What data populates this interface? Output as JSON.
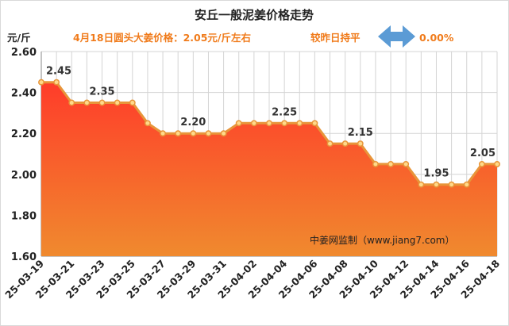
{
  "header": {
    "title": "安丘一般泥姜价格走势",
    "unit": "元/斤",
    "headline": "4月18日圆头大姜价格：2.05元/斤左右",
    "compare": "较昨日持平",
    "change": "0.00%",
    "arrow_icon": "left-right-arrow-icon",
    "arrow_color": "#5b9bd5"
  },
  "watermark": "中姜网监制（www.jiang7.com）",
  "chart_data": {
    "type": "area",
    "title": "安丘一般泥姜价格走势",
    "ylabel": "元/斤",
    "ylim": [
      1.6,
      2.6
    ],
    "yticks": [
      "1.60",
      "1.80",
      "2.00",
      "2.20",
      "2.40",
      "2.60"
    ],
    "grid": true,
    "x": [
      "25-03-19",
      "25-03-20",
      "25-03-21",
      "25-03-22",
      "25-03-23",
      "25-03-24",
      "25-03-25",
      "25-03-26",
      "25-03-27",
      "25-03-28",
      "25-03-29",
      "25-03-30",
      "25-03-31",
      "25-04-01",
      "25-04-02",
      "25-04-03",
      "25-04-04",
      "25-04-05",
      "25-04-06",
      "25-04-07",
      "25-04-08",
      "25-04-09",
      "25-04-10",
      "25-04-11",
      "25-04-12",
      "25-04-13",
      "25-04-14",
      "25-04-15",
      "25-04-16",
      "25-04-17",
      "25-04-18"
    ],
    "xticks": [
      "25-03-19",
      "25-03-21",
      "25-03-23",
      "25-03-25",
      "25-03-27",
      "25-03-29",
      "25-03-31",
      "25-04-02",
      "25-04-04",
      "25-04-06",
      "25-04-08",
      "25-04-10",
      "25-04-12",
      "25-04-14",
      "25-04-16",
      "25-04-18"
    ],
    "values": [
      2.45,
      2.45,
      2.35,
      2.35,
      2.35,
      2.35,
      2.35,
      2.25,
      2.2,
      2.2,
      2.2,
      2.2,
      2.2,
      2.25,
      2.25,
      2.25,
      2.25,
      2.25,
      2.25,
      2.15,
      2.15,
      2.15,
      2.05,
      2.05,
      2.05,
      1.95,
      1.95,
      1.95,
      1.95,
      2.05,
      2.05
    ],
    "data_labels": [
      {
        "x": "25-03-19",
        "text": "2.45"
      },
      {
        "x": "25-03-23",
        "text": "2.35"
      },
      {
        "x": "25-03-29",
        "text": "2.20"
      },
      {
        "x": "25-04-04",
        "text": "2.25"
      },
      {
        "x": "25-04-09",
        "text": "2.15"
      },
      {
        "x": "25-04-14",
        "text": "1.95"
      },
      {
        "x": "25-04-18",
        "text": "2.05"
      }
    ],
    "colors": {
      "line": "#e8953a",
      "marker_fill": "#ffd98a",
      "area_top": "#ff3c2a",
      "area_bottom": "#f08a2e",
      "grid": "#d4d4d4"
    }
  }
}
